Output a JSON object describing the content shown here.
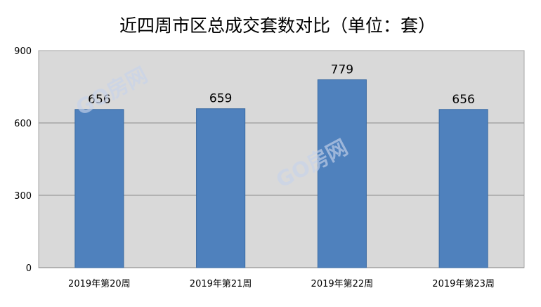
{
  "chart_data": {
    "type": "bar",
    "title": "近四周市区总成交套数对比（单位：套）",
    "categories": [
      "2019年第20周",
      "2019年第21周",
      "2019年第22周",
      "2019年第23周"
    ],
    "values": [
      656,
      659,
      779,
      656
    ],
    "ylim": [
      0,
      900
    ],
    "yticks": [
      0,
      300,
      600,
      900
    ],
    "grid": true,
    "colors": {
      "bar": "#4f81bd",
      "plot_bg": "#d9d9d9",
      "grid": "#8c8c8c"
    }
  },
  "watermark": "GO房网"
}
